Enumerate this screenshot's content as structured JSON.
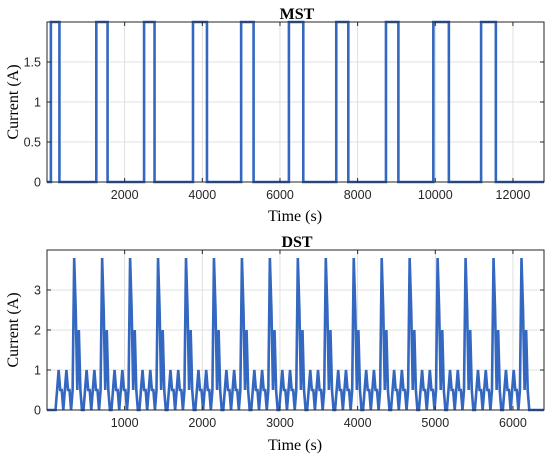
{
  "colors": {
    "signal": "#3367c0",
    "grid": "#d9d9d9",
    "axis": "#262626"
  },
  "chart_data": [
    {
      "type": "line",
      "title": "MST",
      "xlabel": "Time (s)",
      "ylabel": "Current (A)",
      "xlim": [
        0,
        12800
      ],
      "ylim": [
        0,
        2
      ],
      "xticks": [
        2000,
        4000,
        6000,
        8000,
        10000,
        12000
      ],
      "xtick_labels": [
        "2000",
        "4000",
        "6000",
        "8000",
        "10000",
        "12000"
      ],
      "yticks": [
        0,
        0.5,
        1,
        1.5
      ],
      "ytick_labels": [
        "0",
        "0.5",
        "1",
        "1.5"
      ],
      "grid": true,
      "legend": "none",
      "series": [
        {
          "x": [
            0,
            100,
            100,
            320,
            320,
            1270,
            1270,
            1560,
            1560,
            2500,
            2500,
            2770,
            2770,
            3760,
            3760,
            4120,
            4120,
            5000,
            5000,
            5320,
            5320,
            6230,
            6230,
            6600,
            6600,
            7450,
            7450,
            7760,
            7760,
            8730,
            8730,
            9050,
            9050,
            9950,
            9950,
            10350,
            10350,
            11180,
            11180,
            11560,
            11560,
            12800
          ],
          "y": [
            0,
            0,
            2,
            2,
            0,
            0,
            2,
            2,
            0,
            0,
            2,
            2,
            0,
            0,
            2,
            2,
            0,
            0,
            2,
            2,
            0,
            0,
            2,
            2,
            0,
            0,
            2,
            2,
            0,
            0,
            2,
            2,
            0,
            0,
            2,
            2,
            0,
            0,
            2,
            2,
            0,
            0
          ]
        }
      ]
    },
    {
      "type": "line",
      "title": "DST",
      "xlabel": "Time (s)",
      "ylabel": "Current (A)",
      "xlim": [
        0,
        6400
      ],
      "ylim": [
        0,
        4
      ],
      "xticks": [
        1000,
        2000,
        3000,
        4000,
        5000,
        6000
      ],
      "xtick_labels": [
        "1000",
        "2000",
        "3000",
        "4000",
        "5000",
        "6000"
      ],
      "yticks": [
        0,
        1,
        2,
        3
      ],
      "ytick_labels": [
        "0",
        "1",
        "2",
        "3"
      ],
      "grid": true,
      "legend": "none",
      "series": [
        {
          "cycle_start": 110,
          "cycle_period": 360,
          "cycles": 17,
          "end_time": 6290,
          "cycle_profile_t": [
            0,
            20,
            40,
            60,
            80,
            100,
            120,
            140,
            160,
            180,
            200,
            220,
            240,
            260,
            280,
            300,
            320,
            340,
            360
          ],
          "cycle_profile_y": [
            0,
            0.5,
            1.0,
            0.5,
            0.5,
            0,
            0.5,
            1.0,
            0.5,
            0.5,
            0,
            0.5,
            3.8,
            2.5,
            0.5,
            2.0,
            0.5,
            0,
            0
          ]
        }
      ]
    }
  ]
}
